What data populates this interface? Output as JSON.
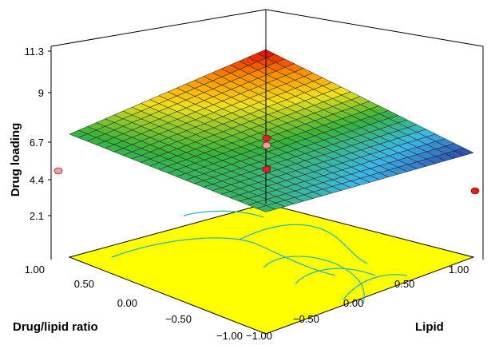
{
  "chart_data": {
    "type": "surface3d",
    "title": "",
    "zlabel": "Drug loading",
    "xlabel": "Drug/lipid ratio",
    "ylabel": "Lipid",
    "zticks": [
      "2.1",
      "4.4",
      "6.7",
      "9",
      "11.3"
    ],
    "xticks": [
      "1.00",
      "0.50",
      "0.00",
      "−0.50",
      "−1.00"
    ],
    "yticks": [
      "−1.00",
      "−0.50",
      "0.00",
      "0.50",
      "1.00"
    ],
    "xlim": [
      -1,
      1
    ],
    "ylim": [
      -1,
      1
    ],
    "zlim": [
      2.1,
      11.3
    ],
    "surface_corners": {
      "ratio_1_lipid_-1": 5.6,
      "ratio_-1_lipid_1": 2.2,
      "ratio_1_lipid_1": 11.3,
      "ratio_-1_lipid_-1": 5.4
    },
    "design_points": [
      {
        "drug_lipid_ratio": 0,
        "lipid": 0,
        "drug_loading": 7.0,
        "color": "#e02020"
      },
      {
        "drug_lipid_ratio": 0,
        "lipid": 0,
        "drug_loading": 6.2,
        "color": "#f0a0a0"
      },
      {
        "drug_lipid_ratio": 0,
        "lipid": 0,
        "drug_loading": 4.6,
        "color": "#e02020"
      },
      {
        "drug_lipid_ratio": 1,
        "lipid": -1,
        "drug_loading": 4.3,
        "color": "#f0a0a0"
      },
      {
        "drug_lipid_ratio": -1,
        "lipid": 1,
        "drug_loading": 2.6,
        "color": "#e02020"
      }
    ],
    "floor_color": "#ffff00",
    "contour_color": "#2ab3b0",
    "colormap": [
      "#2c3fa6",
      "#3db8e8",
      "#38b23a",
      "#f0e020",
      "#ff8c00",
      "#e00000"
    ]
  }
}
